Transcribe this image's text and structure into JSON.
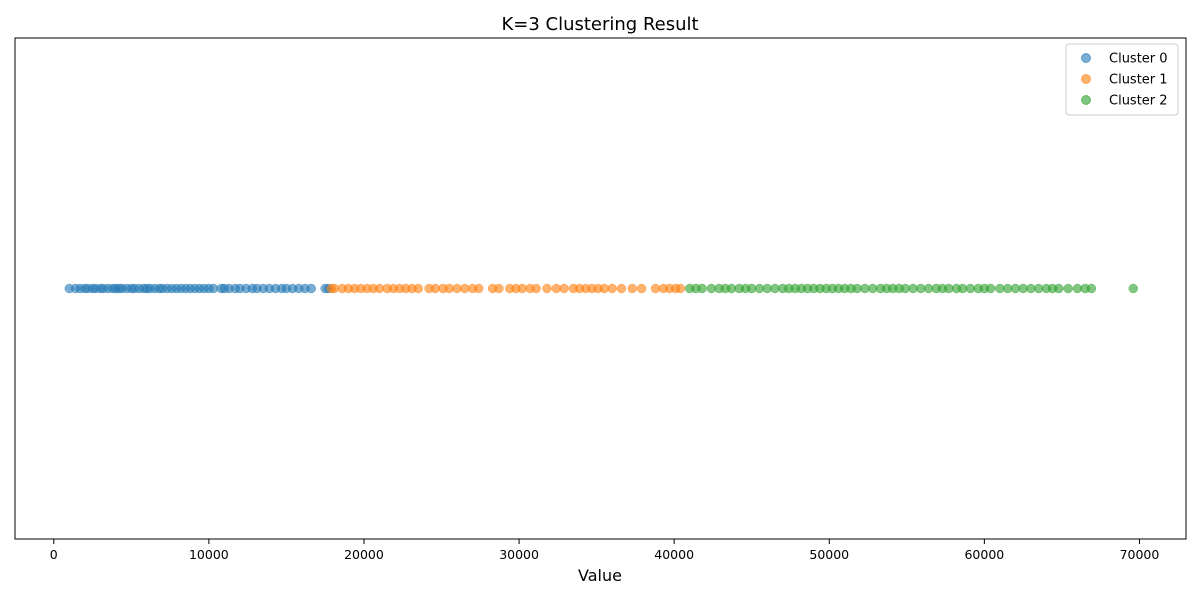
{
  "chart_data": {
    "type": "scatter",
    "title": "K=3 Clustering Result",
    "xlabel": "Value",
    "ylabel": "",
    "xlim": [
      -2500,
      73000
    ],
    "ylim": [
      -0.055,
      0.055
    ],
    "xticks": [
      0,
      10000,
      20000,
      30000,
      40000,
      50000,
      60000,
      70000
    ],
    "xtick_labels": [
      "0",
      "10000",
      "20000",
      "30000",
      "40000",
      "50000",
      "60000",
      "70000"
    ],
    "yticks_visible": false,
    "grid": false,
    "legend_position": "top-right",
    "series": [
      {
        "name": "Cluster 0",
        "color": "#1f77b4",
        "y": 0,
        "x": [
          1000,
          1400,
          1700,
          2000,
          2200,
          2500,
          2700,
          3000,
          3200,
          3500,
          3800,
          4000,
          4200,
          4400,
          4700,
          5000,
          5200,
          5500,
          5800,
          6000,
          6200,
          6500,
          6800,
          7000,
          7300,
          7600,
          7900,
          8200,
          8500,
          8800,
          9100,
          9400,
          9700,
          10000,
          10300,
          10800,
          11000,
          11300,
          11700,
          12000,
          12400,
          12800,
          13100,
          13500,
          13900,
          14300,
          14700,
          15000,
          15400,
          15800,
          16200,
          16600,
          17500,
          17700
        ]
      },
      {
        "name": "Cluster 1",
        "color": "#ff7f0e",
        "y": 0,
        "x": [
          17900,
          18100,
          18600,
          19000,
          19400,
          19800,
          20200,
          20600,
          21000,
          21500,
          21900,
          22300,
          22700,
          23100,
          23500,
          24200,
          24600,
          25100,
          25500,
          26000,
          26500,
          27000,
          27400,
          28300,
          28700,
          29400,
          29800,
          30200,
          30700,
          31100,
          31800,
          32400,
          32900,
          33500,
          33900,
          34300,
          34700,
          35100,
          35500,
          36000,
          36600,
          37300,
          37900,
          38800,
          39300,
          39700,
          40100,
          40400
        ]
      },
      {
        "name": "Cluster 2",
        "color": "#2ca02c",
        "y": 0,
        "x": [
          41000,
          41400,
          41800,
          42400,
          42900,
          43300,
          43700,
          44200,
          44600,
          45000,
          45500,
          46000,
          46500,
          47000,
          47400,
          47800,
          48200,
          48600,
          49000,
          49400,
          49800,
          50200,
          50600,
          51000,
          51400,
          51800,
          52300,
          52800,
          53300,
          53700,
          54100,
          54500,
          54900,
          55400,
          55900,
          56400,
          56900,
          57300,
          57700,
          58200,
          58600,
          59100,
          59600,
          60000,
          60400,
          61000,
          61500,
          62000,
          62500,
          63000,
          63500,
          64000,
          64400,
          64800,
          65400,
          66000,
          66500,
          66900,
          69600
        ]
      }
    ]
  }
}
